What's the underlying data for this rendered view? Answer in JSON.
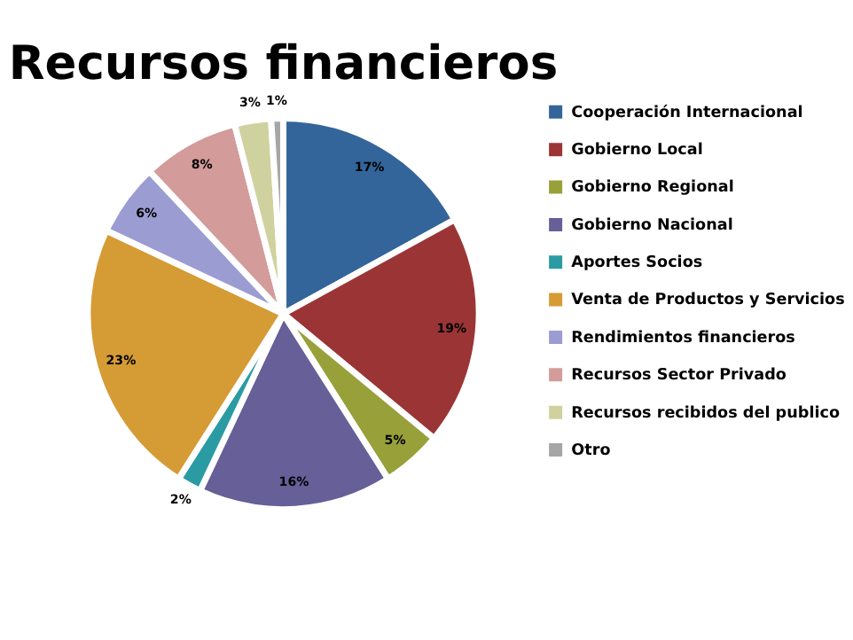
{
  "chart_data": {
    "type": "pie",
    "title": "Recursos financieros",
    "categories": [
      "Cooperación Internacional",
      "Gobierno Local",
      "Gobierno Regional",
      "Gobierno Nacional",
      "Aportes Socios",
      "Venta de Productos y Servicios",
      "Rendimientos financieros",
      "Recursos Sector Privado",
      "Recursos recibidos del publico",
      "Otro"
    ],
    "values": [
      17,
      19,
      5,
      16,
      2,
      23,
      6,
      8,
      3,
      1
    ],
    "colors": [
      "#33659a",
      "#9b3535",
      "#98a03a",
      "#665f98",
      "#2b9ba3",
      "#d59b35",
      "#9a9cd2",
      "#d39b9a",
      "#cfd29e",
      "#a6a6a6"
    ],
    "value_labels": [
      "17%",
      "19%",
      "5%",
      "16%",
      "2%",
      "23%",
      "6%",
      "8%",
      "3%",
      "1%"
    ],
    "legend": "right"
  }
}
